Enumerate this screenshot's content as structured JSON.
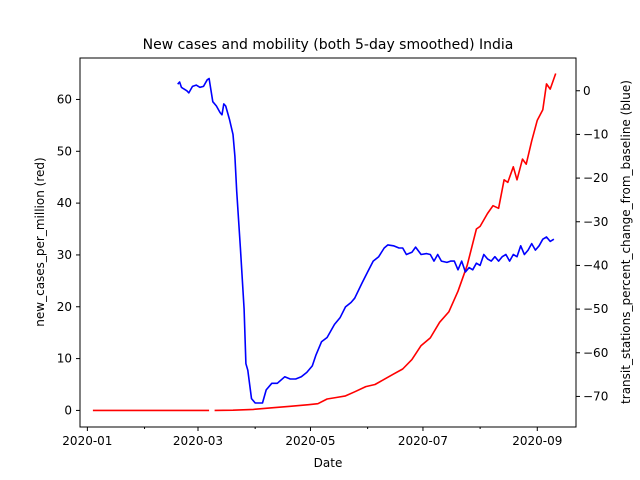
{
  "chart_data": {
    "type": "line",
    "title": "New cases and mobility (both 5-day smoothed) India",
    "xlabel": "Date",
    "ylabel_left": "new_cases_per_million (red)",
    "ylabel_right": "transit_stations_percent_change_from_baseline (blue)",
    "x_ticks": [
      "2020-01",
      "2020-03",
      "2020-05",
      "2020-07",
      "2020-09"
    ],
    "x_range": [
      "2019-12-28",
      "2020-09-22"
    ],
    "y_left_range": [
      -3.2,
      68
    ],
    "y_left_ticks": [
      0,
      10,
      20,
      30,
      40,
      50,
      60
    ],
    "y_right_range": [
      -77,
      7.5
    ],
    "y_right_ticks": [
      0,
      -10,
      -20,
      -30,
      -40,
      -50,
      -60,
      -70
    ],
    "grid": false,
    "legend": "none",
    "colors": {
      "cases": "#ff0000",
      "mobility": "#0000ff"
    },
    "series": [
      {
        "axis": "left",
        "color": "#ff0000",
        "segments": [
          [
            [
              "2020-01-04",
              0
            ],
            [
              "2020-01-20",
              0
            ],
            [
              "2020-02-05",
              0
            ],
            [
              "2020-02-20",
              0
            ],
            [
              "2020-03-07",
              0
            ]
          ],
          [
            [
              "2020-03-10",
              0
            ],
            [
              "2020-03-20",
              0.05
            ],
            [
              "2020-03-31",
              0.2
            ],
            [
              "2020-04-10",
              0.5
            ],
            [
              "2020-04-20",
              0.8
            ],
            [
              "2020-04-30",
              1.1
            ],
            [
              "2020-05-05",
              1.3
            ],
            [
              "2020-05-10",
              2.2
            ],
            [
              "2020-05-15",
              2.5
            ],
            [
              "2020-05-20",
              2.8
            ],
            [
              "2020-05-25",
              3.6
            ],
            [
              "2020-05-31",
              4.6
            ],
            [
              "2020-06-05",
              5.0
            ],
            [
              "2020-06-10",
              6.0
            ],
            [
              "2020-06-15",
              7.0
            ],
            [
              "2020-06-20",
              8.0
            ],
            [
              "2020-06-25",
              9.8
            ],
            [
              "2020-06-30",
              12.5
            ],
            [
              "2020-07-05",
              14.0
            ],
            [
              "2020-07-10",
              17.0
            ],
            [
              "2020-07-15",
              19.0
            ],
            [
              "2020-07-20",
              23.0
            ],
            [
              "2020-07-25",
              28.0
            ],
            [
              "2020-07-30",
              35.0
            ],
            [
              "2020-08-01",
              35.5
            ],
            [
              "2020-08-05",
              38.0
            ],
            [
              "2020-08-08",
              39.5
            ],
            [
              "2020-08-11",
              39.0
            ],
            [
              "2020-08-14",
              44.5
            ],
            [
              "2020-08-16",
              44.0
            ],
            [
              "2020-08-19",
              47.0
            ],
            [
              "2020-08-21",
              44.5
            ],
            [
              "2020-08-24",
              48.5
            ],
            [
              "2020-08-26",
              47.5
            ],
            [
              "2020-08-29",
              52.0
            ],
            [
              "2020-09-01",
              56.0
            ],
            [
              "2020-09-04",
              58.0
            ],
            [
              "2020-09-06",
              63.0
            ],
            [
              "2020-09-08",
              62.0
            ],
            [
              "2020-09-11",
              65.0
            ]
          ]
        ]
      },
      {
        "axis": "right",
        "color": "#0000ff",
        "segments": [
          [
            [
              "2020-02-19",
              1.5
            ],
            [
              "2020-02-20",
              2.0
            ],
            [
              "2020-02-21",
              0.8
            ],
            [
              "2020-02-22",
              0.5
            ],
            [
              "2020-02-24",
              0.0
            ],
            [
              "2020-02-25",
              -0.5
            ],
            [
              "2020-02-27",
              1.0
            ],
            [
              "2020-02-29",
              1.3
            ],
            [
              "2020-03-02",
              0.8
            ],
            [
              "2020-03-04",
              1.0
            ],
            [
              "2020-03-06",
              2.5
            ],
            [
              "2020-03-07",
              2.8
            ],
            [
              "2020-03-09",
              -2.5
            ],
            [
              "2020-03-11",
              -3.5
            ],
            [
              "2020-03-13",
              -5.0
            ],
            [
              "2020-03-14",
              -5.5
            ],
            [
              "2020-03-15",
              -3.0
            ],
            [
              "2020-03-16",
              -3.5
            ],
            [
              "2020-03-18",
              -6.5
            ],
            [
              "2020-03-20",
              -10.0
            ],
            [
              "2020-03-21",
              -15.0
            ],
            [
              "2020-03-22",
              -23.0
            ],
            [
              "2020-03-24",
              -36.0
            ],
            [
              "2020-03-26",
              -50.0
            ],
            [
              "2020-03-27",
              -62.5
            ],
            [
              "2020-03-28",
              -64.0
            ],
            [
              "2020-03-30",
              -70.5
            ],
            [
              "2020-04-01",
              -71.5
            ],
            [
              "2020-04-03",
              -71.5
            ],
            [
              "2020-04-05",
              -71.5
            ],
            [
              "2020-04-07",
              -68.5
            ],
            [
              "2020-04-10",
              -67.0
            ],
            [
              "2020-04-13",
              -67.0
            ],
            [
              "2020-04-17",
              -65.5
            ],
            [
              "2020-04-20",
              -66.0
            ],
            [
              "2020-04-23",
              -66.0
            ],
            [
              "2020-04-26",
              -65.5
            ],
            [
              "2020-04-29",
              -64.5
            ],
            [
              "2020-05-02",
              -63.0
            ],
            [
              "2020-05-04",
              -60.5
            ],
            [
              "2020-05-07",
              -57.5
            ],
            [
              "2020-05-10",
              -56.5
            ],
            [
              "2020-05-14",
              -53.5
            ],
            [
              "2020-05-17",
              -52.0
            ],
            [
              "2020-05-20",
              -49.5
            ],
            [
              "2020-05-23",
              -48.5
            ],
            [
              "2020-05-25",
              -47.5
            ],
            [
              "2020-05-29",
              -44.0
            ],
            [
              "2020-06-01",
              -41.5
            ],
            [
              "2020-06-04",
              -39.0
            ],
            [
              "2020-06-07",
              -38.0
            ],
            [
              "2020-06-10",
              -36.0
            ],
            [
              "2020-06-12",
              -35.3
            ],
            [
              "2020-06-15",
              -35.5
            ],
            [
              "2020-06-18",
              -36.0
            ],
            [
              "2020-06-20",
              -36.0
            ],
            [
              "2020-06-22",
              -37.5
            ],
            [
              "2020-06-25",
              -37.0
            ],
            [
              "2020-06-27",
              -35.8
            ],
            [
              "2020-06-30",
              -37.5
            ],
            [
              "2020-07-03",
              -37.3
            ],
            [
              "2020-07-05",
              -37.5
            ],
            [
              "2020-07-07",
              -39.0
            ],
            [
              "2020-07-09",
              -37.5
            ],
            [
              "2020-07-11",
              -39.0
            ],
            [
              "2020-07-14",
              -39.3
            ],
            [
              "2020-07-16",
              -39.0
            ],
            [
              "2020-07-18",
              -39.0
            ],
            [
              "2020-07-20",
              -41.0
            ],
            [
              "2020-07-22",
              -39.0
            ],
            [
              "2020-07-24",
              -41.5
            ],
            [
              "2020-07-26",
              -40.5
            ],
            [
              "2020-07-28",
              -41.0
            ],
            [
              "2020-07-30",
              -39.5
            ],
            [
              "2020-08-01",
              -40.0
            ],
            [
              "2020-08-03",
              -37.5
            ],
            [
              "2020-08-05",
              -38.5
            ],
            [
              "2020-08-07",
              -39.0
            ],
            [
              "2020-08-09",
              -38.0
            ],
            [
              "2020-08-11",
              -39.0
            ],
            [
              "2020-08-13",
              -38.0
            ],
            [
              "2020-08-15",
              -37.5
            ],
            [
              "2020-08-17",
              -39.0
            ],
            [
              "2020-08-19",
              -37.5
            ],
            [
              "2020-08-21",
              -38.0
            ],
            [
              "2020-08-23",
              -35.5
            ],
            [
              "2020-08-25",
              -37.5
            ],
            [
              "2020-08-27",
              -36.5
            ],
            [
              "2020-08-29",
              -35.0
            ],
            [
              "2020-08-31",
              -36.5
            ],
            [
              "2020-09-02",
              -35.5
            ],
            [
              "2020-09-04",
              -34.0
            ],
            [
              "2020-09-06",
              -33.5
            ],
            [
              "2020-09-08",
              -34.5
            ],
            [
              "2020-09-10",
              -34.0
            ]
          ]
        ]
      }
    ]
  }
}
